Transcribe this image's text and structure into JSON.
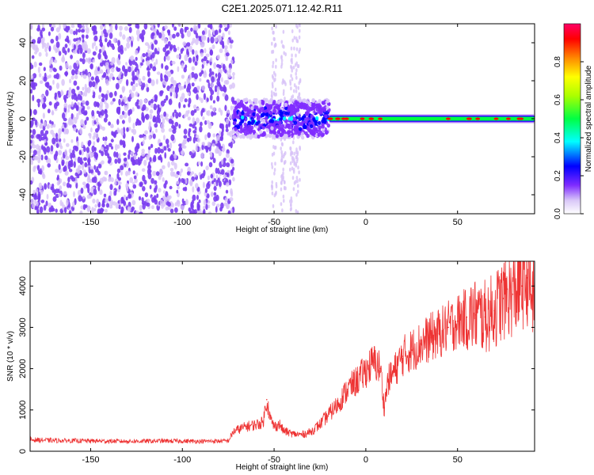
{
  "figure_title": "C2E1.2025.071.12.42.R11",
  "colors": {
    "line": "#ee3333",
    "spectrogram_dots": "#7a3cf0",
    "spectrogram_light": "#d7c2f7",
    "colormap": [
      "#ffffff",
      "#d9c8f8",
      "#7f2cff",
      "#0000ff",
      "#00ffff",
      "#00ff44",
      "#ffff00",
      "#ff8800",
      "#ff0000",
      "#ff0066"
    ]
  },
  "chart_data": [
    {
      "type": "heatmap",
      "title": "",
      "xlabel": "Height of straight line (km)",
      "ylabel": "Frequency (Hz)",
      "xlim": [
        -183,
        92
      ],
      "ylim": [
        -50,
        50
      ],
      "xticks": [
        -150,
        -100,
        -50,
        0,
        50
      ],
      "yticks": [
        -40,
        -20,
        0,
        20,
        40
      ],
      "colorbar": {
        "label": "Normalized spectral amplitude",
        "range": [
          0.0,
          1.0
        ],
        "ticks": [
          "0.0",
          "0.2",
          "0.4",
          "0.6",
          "0.8"
        ]
      },
      "regions": [
        {
          "x_range": [
            -183,
            -72
          ],
          "description_level": 0.15
        },
        {
          "x_range": [
            -72,
            -20
          ],
          "freq_band": [
            -10,
            10
          ],
          "level": 0.35
        },
        {
          "x_range": [
            -20,
            92
          ],
          "freq_band": [
            -3,
            3
          ],
          "level": 0.55,
          "peak_level": 0.9
        }
      ]
    },
    {
      "type": "line",
      "title": "",
      "xlabel": "Height of straight line (km)",
      "ylabel": "SNR (10 * v/v)",
      "xlim": [
        -183,
        92
      ],
      "ylim": [
        0,
        4600
      ],
      "xticks": [
        -150,
        -100,
        -50,
        0,
        50
      ],
      "yticks": [
        0,
        1000,
        2000,
        3000,
        4000
      ],
      "series": [
        {
          "name": "",
          "x": [
            -183,
            -170,
            -150,
            -130,
            -110,
            -90,
            -75,
            -72,
            -70,
            -65,
            -60,
            -56,
            -54,
            -52,
            -50,
            -47,
            -45,
            -40,
            -35,
            -30,
            -25,
            -20,
            -15,
            -10,
            -5,
            0,
            3,
            5,
            8,
            10,
            12,
            15,
            20,
            25,
            30,
            35,
            40,
            45,
            50,
            55,
            60,
            65,
            70,
            75,
            80,
            85,
            88,
            90,
            92
          ],
          "y": [
            280,
            260,
            250,
            240,
            250,
            240,
            250,
            480,
            520,
            600,
            640,
            700,
            1250,
            780,
            600,
            650,
            500,
            420,
            400,
            470,
            650,
            900,
            1150,
            1500,
            1700,
            1950,
            2100,
            2150,
            2000,
            1050,
            1700,
            1900,
            2300,
            2450,
            2600,
            2750,
            2850,
            3000,
            3150,
            3250,
            3300,
            3250,
            3400,
            3700,
            3800,
            4000,
            4200,
            3800,
            3700
          ]
        }
      ]
    }
  ]
}
